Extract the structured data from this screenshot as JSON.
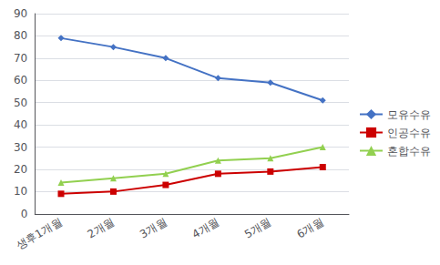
{
  "chart_data": {
    "type": "line",
    "categories": [
      "생후1개월",
      "2개월",
      "3개월",
      "4개월",
      "5개월",
      "6개월"
    ],
    "series": [
      {
        "name": "모유수유",
        "values": [
          79,
          75,
          70,
          61,
          59,
          51
        ],
        "color": "#4472C4",
        "marker": "diamond"
      },
      {
        "name": "인공수유",
        "values": [
          9,
          10,
          13,
          18,
          19,
          21
        ],
        "color": "#CC0000",
        "marker": "square"
      },
      {
        "name": "혼합수유",
        "values": [
          14,
          16,
          18,
          24,
          25,
          30
        ],
        "color": "#92D050",
        "marker": "triangle"
      }
    ],
    "ylim": [
      0,
      90
    ],
    "yticks": [
      0,
      10,
      20,
      30,
      40,
      50,
      60,
      70,
      80,
      90
    ],
    "grid": true,
    "legend": "right"
  }
}
